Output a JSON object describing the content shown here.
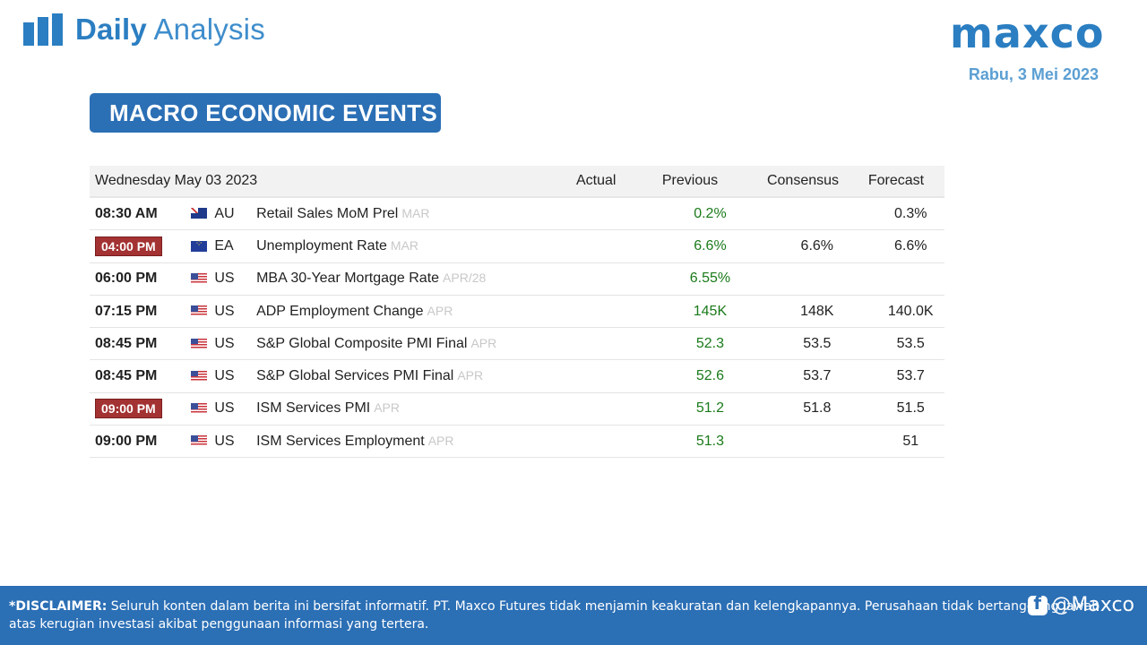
{
  "header": {
    "title_bold": "Daily",
    "title_light": "Analysis",
    "logo_text": "maxco",
    "date": "Rabu, 3 Mei 2023"
  },
  "section_title": "MACRO ECONOMIC EVENTS",
  "table": {
    "date_header": "Wednesday May 03 2023",
    "columns": {
      "actual": "Actual",
      "previous": "Previous",
      "consensus": "Consensus",
      "forecast": "Forecast"
    },
    "rows": [
      {
        "time": "08:30 AM",
        "country": "AU",
        "flag": "flag-au-icon",
        "event": "Retail Sales MoM Prel",
        "period": "MAR",
        "actual": "",
        "previous": "0.2%",
        "consensus": "",
        "forecast": "0.3%",
        "highlight": false
      },
      {
        "time": "04:00 PM",
        "country": "EA",
        "flag": "flag-eu-icon",
        "event": "Unemployment Rate",
        "period": "MAR",
        "actual": "",
        "previous": "6.6%",
        "consensus": "6.6%",
        "forecast": "6.6%",
        "highlight": true
      },
      {
        "time": "06:00 PM",
        "country": "US",
        "flag": "flag-us-icon",
        "event": "MBA 30-Year Mortgage Rate",
        "period": "APR/28",
        "actual": "",
        "previous": "6.55%",
        "consensus": "",
        "forecast": "",
        "highlight": false
      },
      {
        "time": "07:15 PM",
        "country": "US",
        "flag": "flag-us-icon",
        "event": "ADP Employment Change",
        "period": "APR",
        "actual": "",
        "previous": "145K",
        "consensus": "148K",
        "forecast": "140.0K",
        "highlight": false
      },
      {
        "time": "08:45 PM",
        "country": "US",
        "flag": "flag-us-icon",
        "event": "S&P Global Composite PMI Final",
        "period": "APR",
        "actual": "",
        "previous": "52.3",
        "consensus": "53.5",
        "forecast": "53.5",
        "highlight": false
      },
      {
        "time": "08:45 PM",
        "country": "US",
        "flag": "flag-us-icon",
        "event": "S&P Global Services PMI Final",
        "period": "APR",
        "actual": "",
        "previous": "52.6",
        "consensus": "53.7",
        "forecast": "53.7",
        "highlight": false
      },
      {
        "time": "09:00 PM",
        "country": "US",
        "flag": "flag-us-icon",
        "event": "ISM Services PMI",
        "period": "APR",
        "actual": "",
        "previous": "51.2",
        "consensus": "51.8",
        "forecast": "51.5",
        "highlight": true
      },
      {
        "time": "09:00 PM",
        "country": "US",
        "flag": "flag-us-icon",
        "event": "ISM Services Employment",
        "period": "APR",
        "actual": "",
        "previous": "51.3",
        "consensus": "",
        "forecast": "51",
        "highlight": false
      }
    ]
  },
  "footer": {
    "disclaimer_label": "*DISCLAIMER:",
    "disclaimer_text": " Seluruh konten dalam berita ini bersifat informatif. PT. Maxco Futures tidak menjamin keakuratan dan kelengkapannya. Perusahaan tidak bertanggung jawab atas kerugian investasi akibat penggunaan informasi yang tertera.",
    "social_handle": "@Maxco"
  },
  "colors": {
    "brand_blue": "#2b7ec1",
    "badge_blue": "#2b6fb5",
    "highlight_red": "#a33232",
    "previous_green": "#1a7a1a"
  }
}
